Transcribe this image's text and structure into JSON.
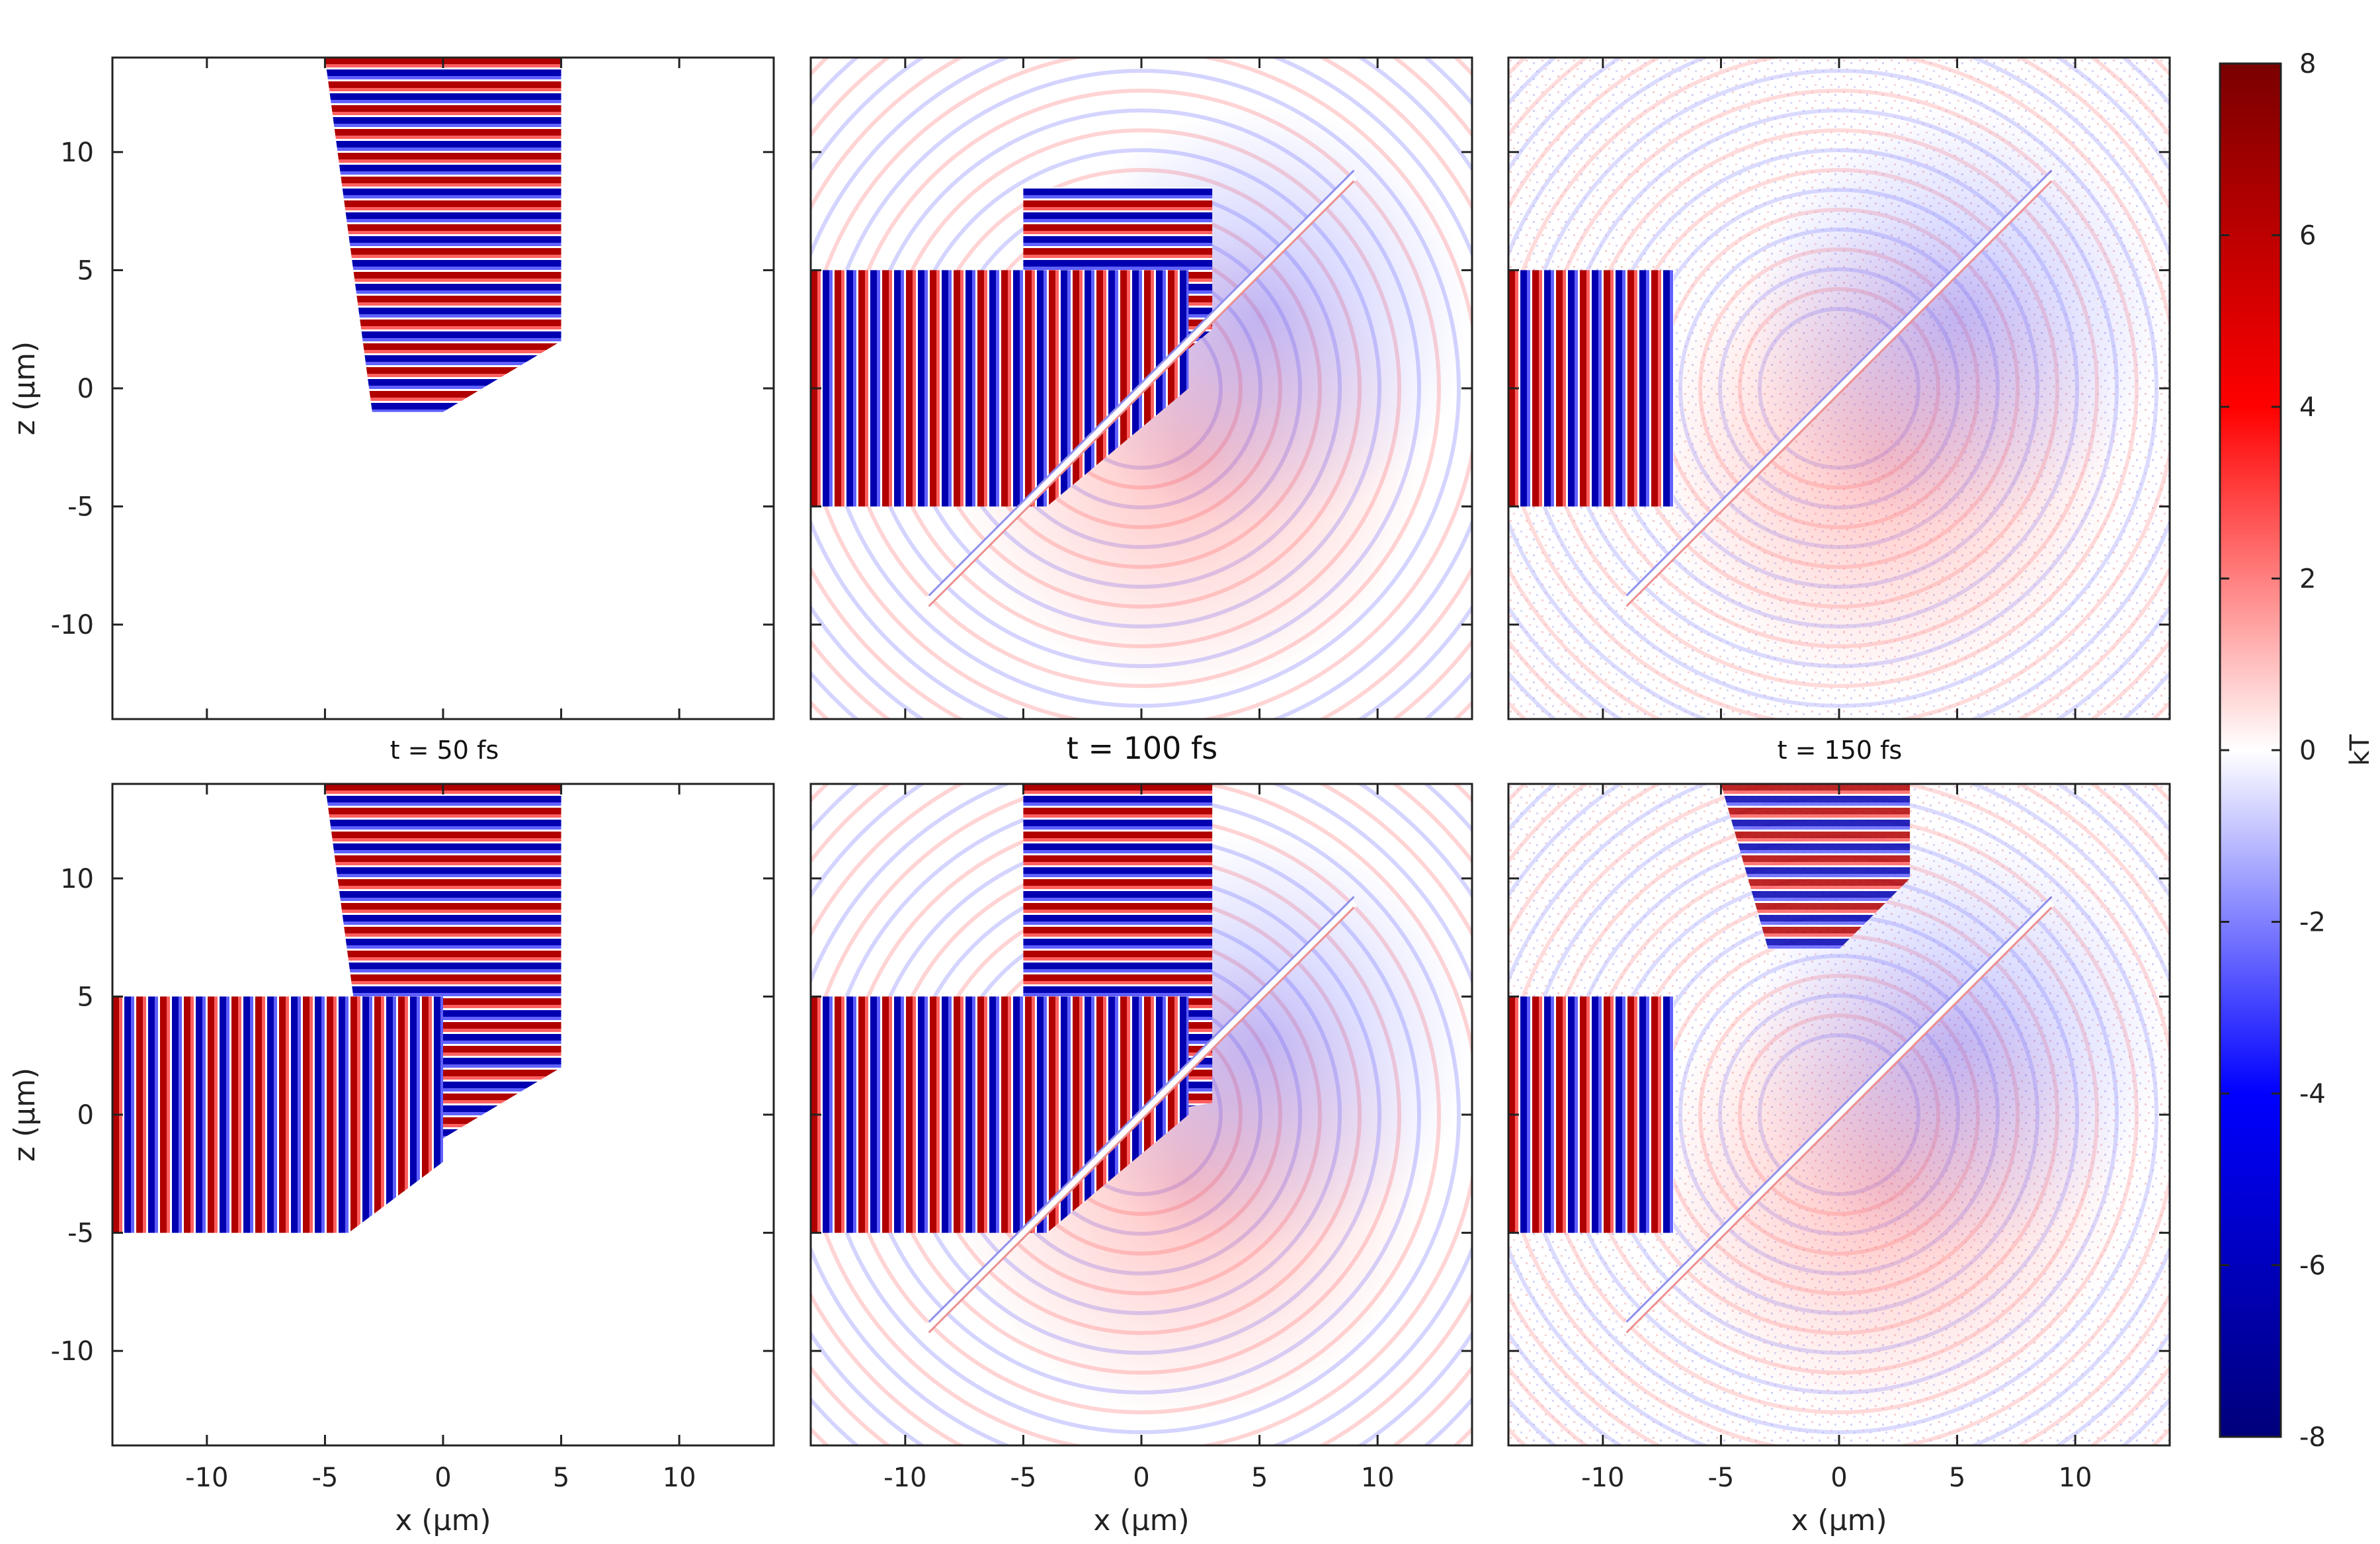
{
  "chart_data": {
    "type": "heatmap",
    "description_units": {
      "xlabel": "x (μm)",
      "ylabel": "z (μm)",
      "colorbar_label": "kT"
    },
    "layout": {
      "rows": 2,
      "cols": 3
    },
    "shared_x": {
      "label": "x (μm)",
      "range": [
        -14,
        14
      ],
      "ticks": [
        -10,
        -5,
        0,
        5,
        10
      ]
    },
    "shared_y": {
      "label": "z (μm)",
      "range": [
        -14,
        14
      ],
      "ticks": [
        -10,
        -5,
        0,
        5,
        10
      ]
    },
    "column_titles": [
      "t = 50 fs",
      "t = 100 fs",
      "t = 150 fs"
    ],
    "colorbar": {
      "label": "kT",
      "range": [
        -8,
        8
      ],
      "ticks": [
        8,
        6,
        4,
        2,
        0,
        -2,
        -4,
        -6,
        -8
      ],
      "colormap": [
        "#000080",
        "#0000ff",
        "#ffffff",
        "#ff0000",
        "#800000"
      ]
    },
    "panels": [
      {
        "row": 0,
        "col": 0,
        "time_fs": 50,
        "beams": [
          "from-top"
        ],
        "interface": false
      },
      {
        "row": 0,
        "col": 1,
        "time_fs": 100,
        "beams": [
          "from-top",
          "from-left"
        ],
        "interface": true
      },
      {
        "row": 0,
        "col": 2,
        "time_fs": 150,
        "beams": [
          "from-left"
        ],
        "interface": true
      },
      {
        "row": 1,
        "col": 0,
        "time_fs": 50,
        "beams": [
          "from-top",
          "from-left"
        ],
        "interface": false
      },
      {
        "row": 1,
        "col": 1,
        "time_fs": 100,
        "beams": [
          "from-top",
          "from-left"
        ],
        "interface": true
      },
      {
        "row": 1,
        "col": 2,
        "time_fs": 150,
        "beams": [
          "from-top",
          "from-left"
        ],
        "interface": true
      }
    ]
  }
}
